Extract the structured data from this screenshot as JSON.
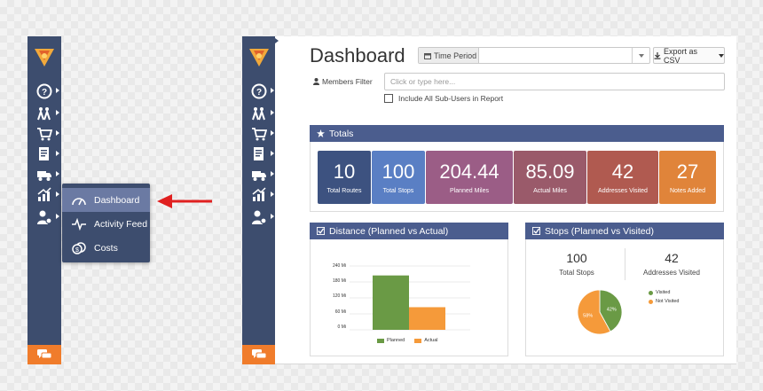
{
  "popup_menu": {
    "items": [
      {
        "label": "Dashboard",
        "icon": "gauge-icon",
        "active": true
      },
      {
        "label": "Activity Feed",
        "icon": "pulse-icon",
        "active": false
      },
      {
        "label": "Costs",
        "icon": "coins-icon",
        "active": false
      }
    ]
  },
  "sidebar": {
    "items": [
      "help-icon",
      "team-icon",
      "cart-icon",
      "document-icon",
      "truck-icon",
      "analytics-icon",
      "user-settings-icon"
    ]
  },
  "header": {
    "title": "Dashboard",
    "time_period_label": "Time Period",
    "time_period_value": "",
    "export_label": "Export as CSV",
    "members_filter_label": "Members Filter",
    "members_filter_placeholder": "Click or type here...",
    "include_subusers_label": "Include All Sub-Users in Report"
  },
  "totals": {
    "title": "Totals",
    "tiles": [
      {
        "value": "10",
        "label": "Total Routes",
        "color": "#3d5280"
      },
      {
        "value": "100",
        "label": "Total Stops",
        "color": "#5a7fc4"
      },
      {
        "value": "204.44",
        "label": "Planned Miles",
        "color": "#9b5d86"
      },
      {
        "value": "85.09",
        "label": "Actual Miles",
        "color": "#9a5a6a"
      },
      {
        "value": "42",
        "label": "Addresses Visited",
        "color": "#b05a50"
      },
      {
        "value": "27",
        "label": "Notes Added",
        "color": "#e0843a"
      }
    ]
  },
  "distance_panel": {
    "title": "Distance (Planned vs Actual)"
  },
  "stops_panel": {
    "title": "Stops (Planned vs Visited)",
    "total_stops_value": "100",
    "total_stops_label": "Total Stops",
    "addresses_visited_value": "42",
    "addresses_visited_label": "Addresses Visited"
  },
  "chart_data": [
    {
      "type": "bar",
      "categories": [
        "Planned",
        "Actual"
      ],
      "values": [
        204.44,
        85.09
      ],
      "colors": [
        "#6a9a45",
        "#f59a3a"
      ],
      "yticks": [
        "240 Mi",
        "180 Mi",
        "120 Mi",
        "60 Mi",
        "0 Mi"
      ],
      "ylim": [
        0,
        240
      ],
      "legend": [
        "Planned",
        "Actual"
      ],
      "legend_placement": "bottom"
    },
    {
      "type": "pie",
      "slices": [
        {
          "name": "Visited",
          "value": 42,
          "label": "42%",
          "color": "#6a9a45"
        },
        {
          "name": "Not Visited",
          "value": 58,
          "label": "58%",
          "color": "#f59a3a"
        }
      ],
      "legend_placement": "right"
    }
  ],
  "chat_label": "chat-icon"
}
